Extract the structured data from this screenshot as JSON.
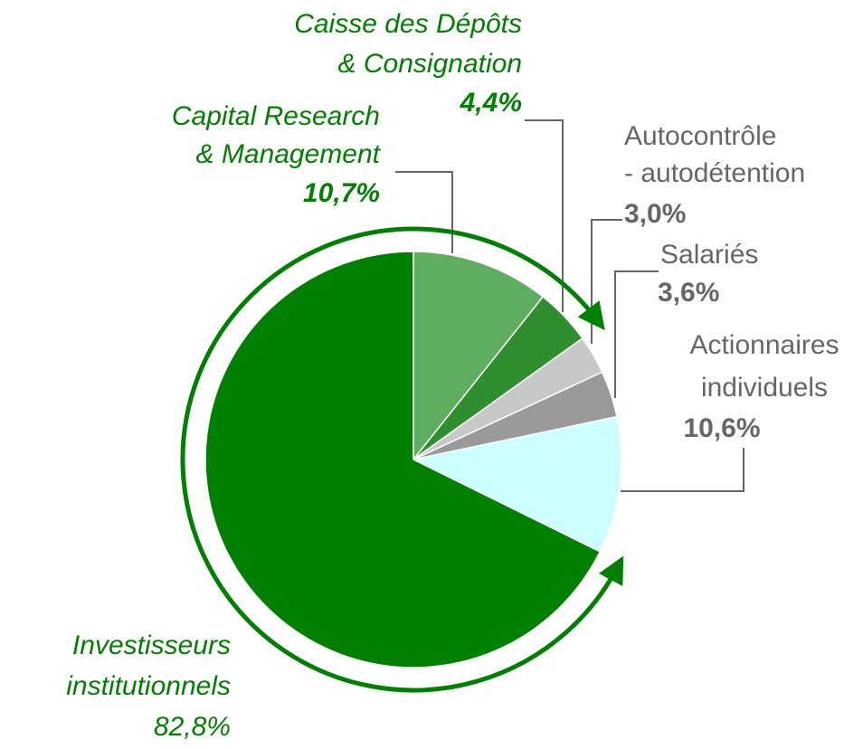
{
  "chart_data": {
    "type": "pie",
    "categories": [
      [
        "Capital Research",
        "& Management"
      ],
      [
        "Caisse des Dépôts",
        "& Consignation"
      ],
      [
        "Autocontrôle",
        "- autodétention"
      ],
      [
        "Salariés"
      ],
      [
        "Actionnaires",
        "individuels"
      ],
      null
    ],
    "values": [
      10.7,
      4.4,
      3.0,
      3.6,
      10.6,
      67.7
    ],
    "value_labels": [
      "10,7%",
      "4,4%",
      "3,0%",
      "3,6%",
      "10,6%",
      null
    ],
    "colors": [
      "#5fae5f",
      "#2f8f2f",
      "#c8c8c8",
      "#9a9a9a",
      "#ccffff",
      "#008000"
    ],
    "annotation": {
      "lines": [
        "Investisseurs",
        "institutionnels"
      ],
      "value": 82.8,
      "label": "82,8%",
      "color": "#008000"
    }
  }
}
